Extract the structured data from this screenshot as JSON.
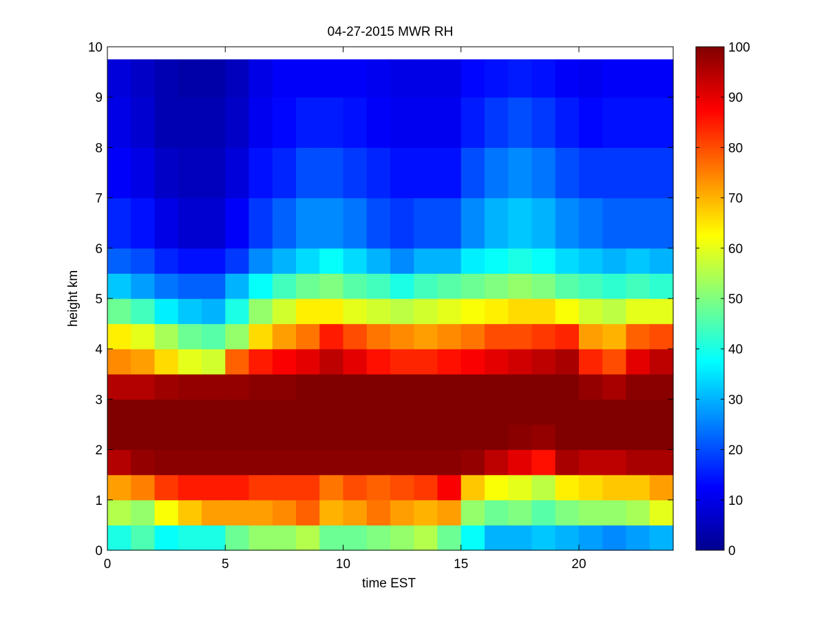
{
  "chart_data": {
    "type": "heatmap",
    "title": "04-27-2015 MWR RH",
    "xlabel": "time EST",
    "ylabel": "height km",
    "xlim": [
      0,
      24
    ],
    "ylim": [
      0,
      10
    ],
    "xticks": [
      0,
      5,
      10,
      15,
      20
    ],
    "yticks": [
      0,
      1,
      2,
      3,
      4,
      5,
      6,
      7,
      8,
      9,
      10
    ],
    "colorbar": {
      "range": [
        0,
        100
      ],
      "ticks": [
        0,
        10,
        20,
        30,
        40,
        50,
        60,
        70,
        80,
        90,
        100
      ],
      "colormap": "jet"
    },
    "times": [
      0,
      1,
      2,
      3,
      4,
      5,
      6,
      7,
      8,
      9,
      10,
      11,
      12,
      13,
      14,
      15,
      16,
      17,
      18,
      19,
      20,
      21,
      22,
      23
    ],
    "heights": [
      0,
      0.5,
      1,
      1.5,
      2,
      2.5,
      3,
      3.5,
      4,
      4.5,
      5,
      5.5,
      6,
      7,
      8,
      9,
      9.75
    ],
    "rh": [
      [
        40,
        45,
        38,
        40,
        40,
        48,
        52,
        52,
        55,
        48,
        48,
        50,
        52,
        55,
        48,
        38,
        30,
        30,
        32,
        30,
        28,
        26,
        28,
        30
      ],
      [
        55,
        52,
        62,
        68,
        72,
        72,
        72,
        74,
        78,
        70,
        72,
        76,
        72,
        70,
        72,
        52,
        48,
        50,
        46,
        50,
        52,
        52,
        54,
        60
      ],
      [
        72,
        75,
        82,
        85,
        85,
        85,
        82,
        82,
        82,
        76,
        80,
        78,
        80,
        82,
        88,
        68,
        62,
        60,
        56,
        64,
        66,
        68,
        68,
        72
      ],
      [
        95,
        98,
        99,
        99,
        99,
        99,
        99,
        99,
        99,
        99,
        99,
        99,
        99,
        99,
        99,
        98,
        94,
        90,
        86,
        96,
        94,
        94,
        96,
        96
      ],
      [
        100,
        100,
        100,
        100,
        100,
        100,
        100,
        100,
        100,
        100,
        100,
        100,
        100,
        100,
        100,
        100,
        100,
        99,
        98,
        100,
        100,
        100,
        100,
        100
      ],
      [
        100,
        100,
        100,
        100,
        100,
        100,
        100,
        100,
        100,
        100,
        100,
        100,
        100,
        100,
        100,
        100,
        100,
        100,
        100,
        100,
        100,
        100,
        100,
        100
      ],
      [
        95,
        95,
        97,
        98,
        98,
        98,
        99,
        99,
        100,
        100,
        100,
        100,
        100,
        100,
        100,
        100,
        100,
        100,
        100,
        100,
        98,
        96,
        99,
        99
      ],
      [
        74,
        72,
        66,
        60,
        58,
        78,
        85,
        88,
        90,
        94,
        90,
        86,
        84,
        84,
        86,
        88,
        90,
        92,
        94,
        96,
        84,
        80,
        90,
        94
      ],
      [
        64,
        60,
        54,
        48,
        46,
        52,
        66,
        72,
        76,
        85,
        80,
        76,
        74,
        72,
        74,
        76,
        80,
        80,
        82,
        84,
        72,
        70,
        78,
        80
      ],
      [
        48,
        44,
        36,
        32,
        30,
        40,
        52,
        58,
        64,
        64,
        60,
        58,
        56,
        58,
        60,
        62,
        64,
        66,
        66,
        62,
        58,
        56,
        60,
        60
      ],
      [
        32,
        28,
        24,
        22,
        22,
        30,
        38,
        44,
        48,
        50,
        46,
        44,
        40,
        44,
        46,
        48,
        50,
        52,
        50,
        46,
        44,
        42,
        44,
        42
      ],
      [
        22,
        20,
        16,
        14,
        14,
        18,
        26,
        30,
        34,
        38,
        34,
        30,
        26,
        30,
        30,
        36,
        38,
        40,
        38,
        34,
        32,
        30,
        32,
        30
      ],
      [
        16,
        14,
        10,
        8,
        8,
        12,
        18,
        22,
        26,
        26,
        24,
        20,
        18,
        20,
        20,
        26,
        30,
        32,
        30,
        26,
        24,
        22,
        22,
        22
      ],
      [
        12,
        10,
        7,
        6,
        6,
        9,
        14,
        16,
        20,
        20,
        18,
        16,
        14,
        14,
        14,
        20,
        24,
        26,
        24,
        20,
        18,
        18,
        18,
        18
      ],
      [
        10,
        8,
        5,
        5,
        5,
        7,
        11,
        13,
        15,
        15,
        14,
        12,
        11,
        11,
        11,
        15,
        18,
        20,
        18,
        15,
        13,
        14,
        14,
        14
      ],
      [
        9,
        7,
        5,
        4,
        4,
        6,
        10,
        12,
        12,
        12,
        12,
        11,
        10,
        10,
        10,
        13,
        14,
        15,
        14,
        12,
        11,
        12,
        12,
        12
      ],
      [
        9,
        7,
        5,
        4,
        4,
        6,
        10,
        12,
        12,
        12,
        12,
        11,
        10,
        10,
        10,
        13,
        14,
        15,
        14,
        12,
        11,
        12,
        12,
        12
      ]
    ]
  }
}
